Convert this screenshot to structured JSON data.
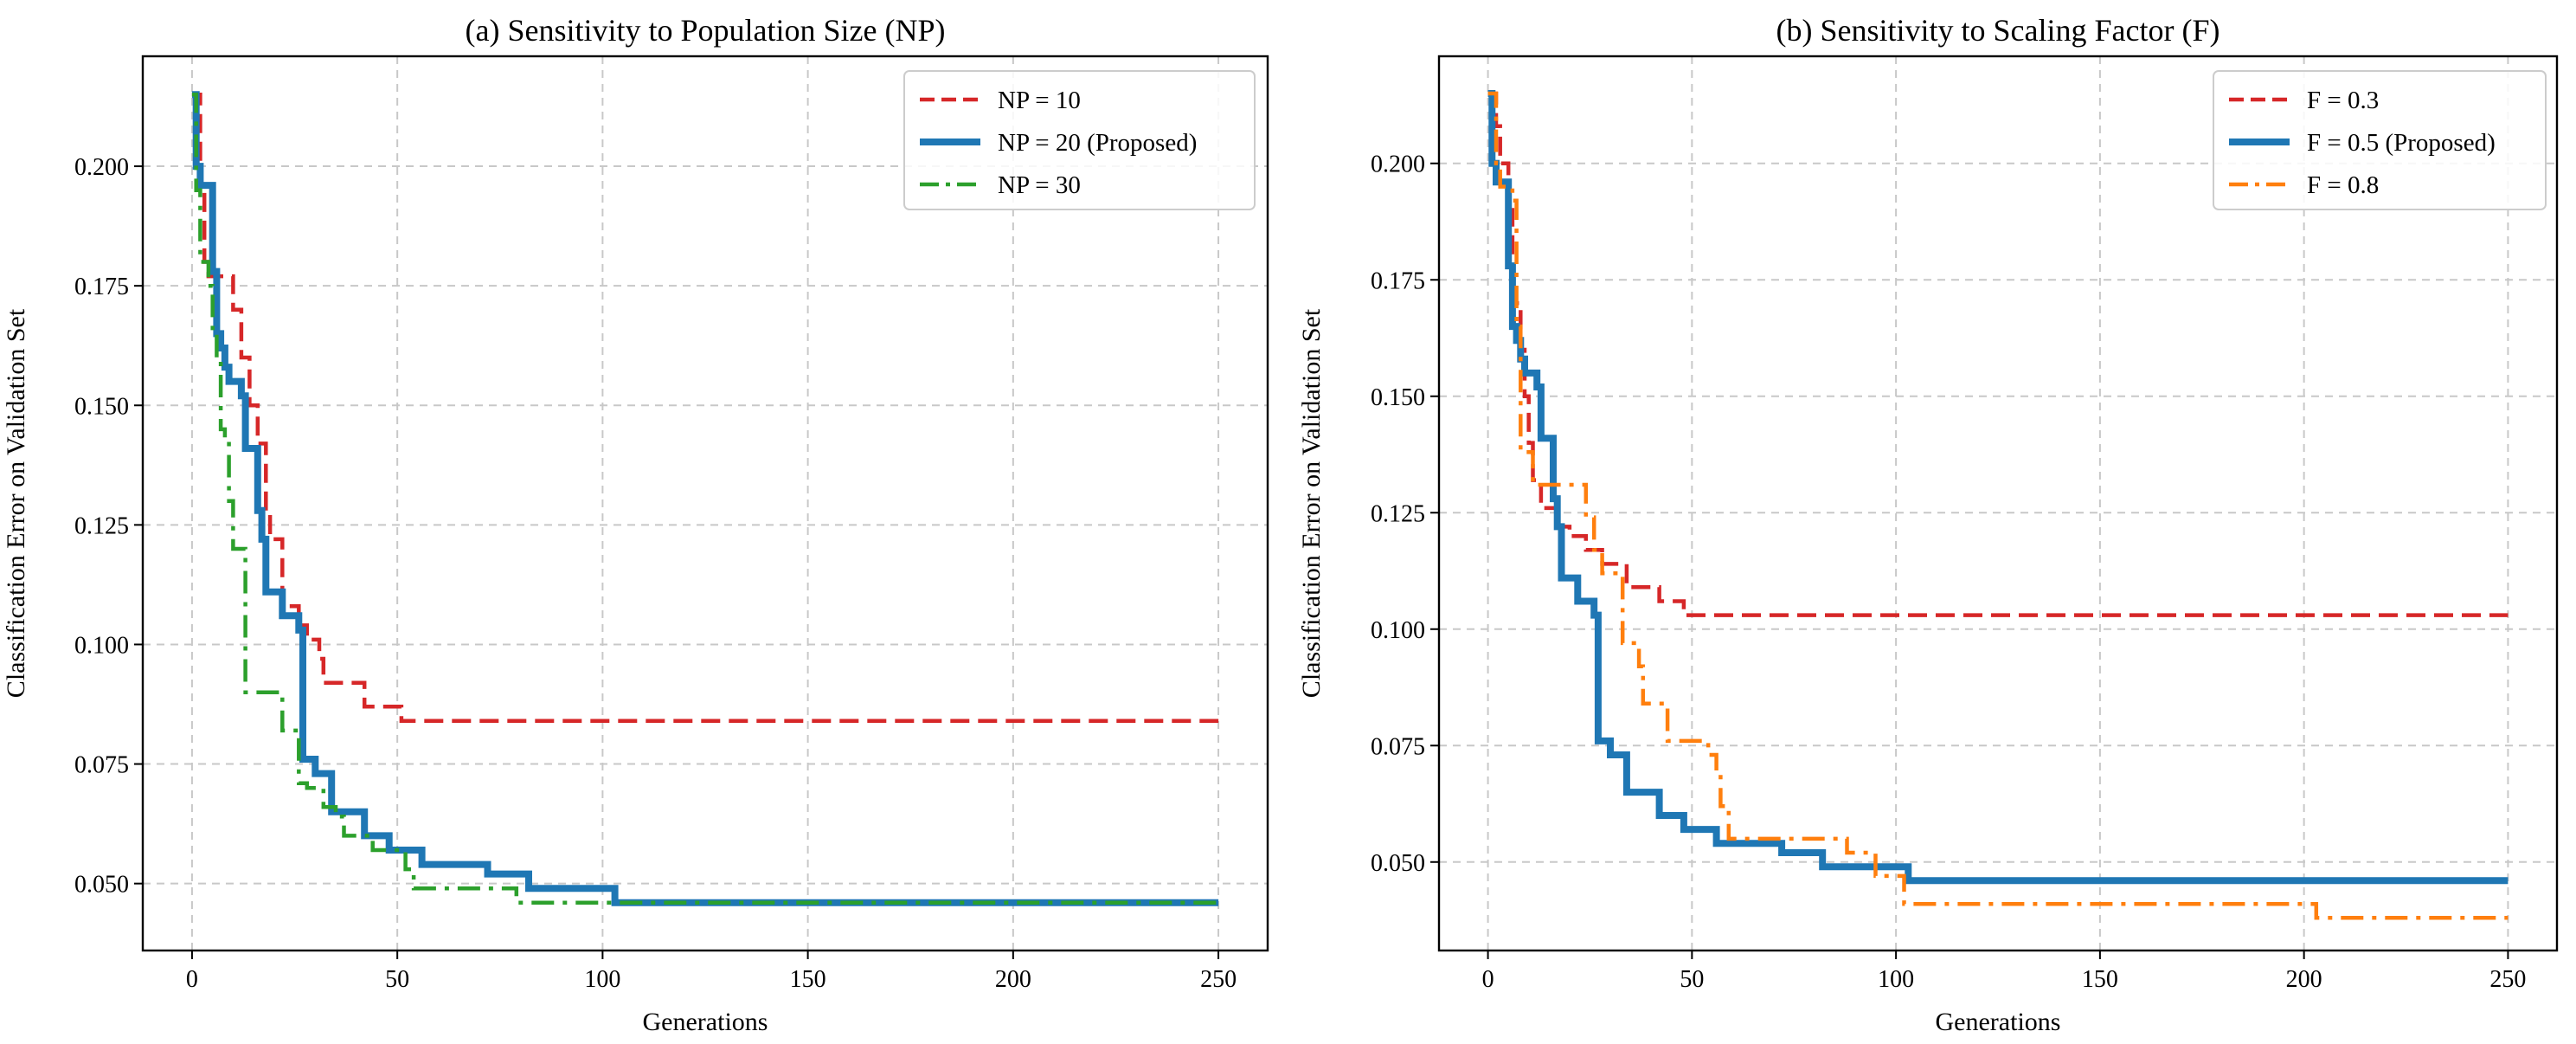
{
  "chart_data": [
    {
      "type": "line",
      "title": "(a) Sensitivity to Population Size (NP)",
      "xlabel": "Generations",
      "ylabel": "Classification Error on Validation Set",
      "xlim": [
        -12,
        262
      ],
      "ylim": [
        0.036,
        0.223
      ],
      "xticks": [
        0,
        50,
        100,
        150,
        200,
        250
      ],
      "xtick_labels": [
        "0",
        "50",
        "100",
        "150",
        "200",
        "250"
      ],
      "yticks": [
        0.05,
        0.075,
        0.1,
        0.125,
        0.15,
        0.175,
        0.2
      ],
      "ytick_labels": [
        "0.050",
        "0.075",
        "0.100",
        "0.125",
        "0.150",
        "0.175",
        "0.200"
      ],
      "grid": true,
      "legend_position": "top-right",
      "series": [
        {
          "name": "NP = 10",
          "color": "#d62728",
          "style": "dashed",
          "points": [
            [
              0,
              0.215
            ],
            [
              2,
              0.215
            ],
            [
              2,
              0.195
            ],
            [
              3,
              0.195
            ],
            [
              3,
              0.18
            ],
            [
              4,
              0.18
            ],
            [
              4,
              0.177
            ],
            [
              10,
              0.177
            ],
            [
              10,
              0.17
            ],
            [
              12,
              0.17
            ],
            [
              12,
              0.16
            ],
            [
              14,
              0.16
            ],
            [
              14,
              0.15
            ],
            [
              16,
              0.15
            ],
            [
              16,
              0.142
            ],
            [
              18,
              0.142
            ],
            [
              18,
              0.128
            ],
            [
              19,
              0.128
            ],
            [
              19,
              0.122
            ],
            [
              22,
              0.122
            ],
            [
              22,
              0.108
            ],
            [
              26,
              0.108
            ],
            [
              26,
              0.104
            ],
            [
              28,
              0.104
            ],
            [
              28,
              0.101
            ],
            [
              31,
              0.101
            ],
            [
              31,
              0.097
            ],
            [
              32,
              0.097
            ],
            [
              32,
              0.092
            ],
            [
              42,
              0.092
            ],
            [
              42,
              0.087
            ],
            [
              51,
              0.087
            ],
            [
              51,
              0.084
            ],
            [
              250,
              0.084
            ]
          ]
        },
        {
          "name": "NP = 20 (Proposed)",
          "color": "#1f77b4",
          "style": "solid",
          "points": [
            [
              0,
              0.215
            ],
            [
              1,
              0.215
            ],
            [
              1,
              0.2
            ],
            [
              2,
              0.2
            ],
            [
              2,
              0.196
            ],
            [
              5,
              0.196
            ],
            [
              5,
              0.178
            ],
            [
              6,
              0.178
            ],
            [
              6,
              0.165
            ],
            [
              7,
              0.165
            ],
            [
              7,
              0.162
            ],
            [
              8,
              0.162
            ],
            [
              8,
              0.158
            ],
            [
              9,
              0.158
            ],
            [
              9,
              0.155
            ],
            [
              12,
              0.155
            ],
            [
              12,
              0.152
            ],
            [
              13,
              0.152
            ],
            [
              13,
              0.141
            ],
            [
              16,
              0.141
            ],
            [
              16,
              0.128
            ],
            [
              17,
              0.128
            ],
            [
              17,
              0.122
            ],
            [
              18,
              0.122
            ],
            [
              18,
              0.111
            ],
            [
              22,
              0.111
            ],
            [
              22,
              0.106
            ],
            [
              26,
              0.106
            ],
            [
              26,
              0.103
            ],
            [
              27,
              0.103
            ],
            [
              27,
              0.076
            ],
            [
              30,
              0.076
            ],
            [
              30,
              0.073
            ],
            [
              34,
              0.073
            ],
            [
              34,
              0.065
            ],
            [
              42,
              0.065
            ],
            [
              42,
              0.06
            ],
            [
              48,
              0.06
            ],
            [
              48,
              0.057
            ],
            [
              56,
              0.057
            ],
            [
              56,
              0.054
            ],
            [
              72,
              0.054
            ],
            [
              72,
              0.052
            ],
            [
              82,
              0.052
            ],
            [
              82,
              0.049
            ],
            [
              103,
              0.049
            ],
            [
              103,
              0.046
            ],
            [
              250,
              0.046
            ]
          ]
        },
        {
          "name": "NP = 30",
          "color": "#2ca02c",
          "style": "dashdot",
          "points": [
            [
              0,
              0.215
            ],
            [
              1,
              0.215
            ],
            [
              1,
              0.195
            ],
            [
              2,
              0.195
            ],
            [
              2,
              0.18
            ],
            [
              4,
              0.18
            ],
            [
              4,
              0.175
            ],
            [
              5,
              0.175
            ],
            [
              5,
              0.165
            ],
            [
              6,
              0.165
            ],
            [
              6,
              0.16
            ],
            [
              7,
              0.16
            ],
            [
              7,
              0.145
            ],
            [
              8,
              0.145
            ],
            [
              8,
              0.143
            ],
            [
              9,
              0.143
            ],
            [
              9,
              0.13
            ],
            [
              10,
              0.13
            ],
            [
              10,
              0.12
            ],
            [
              13,
              0.12
            ],
            [
              13,
              0.09
            ],
            [
              22,
              0.09
            ],
            [
              22,
              0.082
            ],
            [
              26,
              0.082
            ],
            [
              26,
              0.071
            ],
            [
              28,
              0.071
            ],
            [
              28,
              0.07
            ],
            [
              32,
              0.07
            ],
            [
              32,
              0.066
            ],
            [
              35,
              0.066
            ],
            [
              35,
              0.064
            ],
            [
              37,
              0.064
            ],
            [
              37,
              0.06
            ],
            [
              44,
              0.06
            ],
            [
              44,
              0.057
            ],
            [
              52,
              0.057
            ],
            [
              52,
              0.053
            ],
            [
              54,
              0.053
            ],
            [
              54,
              0.049
            ],
            [
              79,
              0.049
            ],
            [
              79,
              0.046
            ],
            [
              250,
              0.046
            ]
          ]
        }
      ]
    },
    {
      "type": "line",
      "title": "(b) Sensitivity to Scaling Factor (F)",
      "xlabel": "Generations",
      "ylabel": "Classification Error on Validation Set",
      "xlim": [
        -12,
        262
      ],
      "ylim": [
        0.031,
        0.223
      ],
      "xticks": [
        0,
        50,
        100,
        150,
        200,
        250
      ],
      "xtick_labels": [
        "0",
        "50",
        "100",
        "150",
        "200",
        "250"
      ],
      "yticks": [
        0.05,
        0.075,
        0.1,
        0.125,
        0.15,
        0.175,
        0.2
      ],
      "ytick_labels": [
        "0.050",
        "0.075",
        "0.100",
        "0.125",
        "0.150",
        "0.175",
        "0.200"
      ],
      "grid": true,
      "legend_position": "top-right",
      "series": [
        {
          "name": "F = 0.3",
          "color": "#d62728",
          "style": "dashed",
          "points": [
            [
              0,
              0.215
            ],
            [
              2,
              0.215
            ],
            [
              2,
              0.208
            ],
            [
              3,
              0.208
            ],
            [
              3,
              0.2
            ],
            [
              5,
              0.2
            ],
            [
              5,
              0.19
            ],
            [
              6,
              0.19
            ],
            [
              6,
              0.17
            ],
            [
              8,
              0.17
            ],
            [
              8,
              0.16
            ],
            [
              9,
              0.16
            ],
            [
              9,
              0.15
            ],
            [
              10,
              0.15
            ],
            [
              10,
              0.14
            ],
            [
              11,
              0.14
            ],
            [
              11,
              0.132
            ],
            [
              13,
              0.132
            ],
            [
              13,
              0.126
            ],
            [
              17,
              0.126
            ],
            [
              17,
              0.122
            ],
            [
              20,
              0.122
            ],
            [
              20,
              0.12
            ],
            [
              24,
              0.12
            ],
            [
              24,
              0.117
            ],
            [
              28,
              0.117
            ],
            [
              28,
              0.114
            ],
            [
              34,
              0.114
            ],
            [
              34,
              0.109
            ],
            [
              42,
              0.109
            ],
            [
              42,
              0.106
            ],
            [
              48,
              0.106
            ],
            [
              48,
              0.103
            ],
            [
              250,
              0.103
            ]
          ]
        },
        {
          "name": "F = 0.5 (Proposed)",
          "color": "#1f77b4",
          "style": "solid",
          "points": [
            [
              0,
              0.215
            ],
            [
              1,
              0.215
            ],
            [
              1,
              0.2
            ],
            [
              2,
              0.2
            ],
            [
              2,
              0.196
            ],
            [
              5,
              0.196
            ],
            [
              5,
              0.178
            ],
            [
              6,
              0.178
            ],
            [
              6,
              0.165
            ],
            [
              7,
              0.165
            ],
            [
              7,
              0.162
            ],
            [
              8,
              0.162
            ],
            [
              8,
              0.158
            ],
            [
              9,
              0.158
            ],
            [
              9,
              0.155
            ],
            [
              12,
              0.155
            ],
            [
              12,
              0.152
            ],
            [
              13,
              0.152
            ],
            [
              13,
              0.141
            ],
            [
              16,
              0.141
            ],
            [
              16,
              0.128
            ],
            [
              17,
              0.128
            ],
            [
              17,
              0.122
            ],
            [
              18,
              0.122
            ],
            [
              18,
              0.111
            ],
            [
              22,
              0.111
            ],
            [
              22,
              0.106
            ],
            [
              26,
              0.106
            ],
            [
              26,
              0.103
            ],
            [
              27,
              0.103
            ],
            [
              27,
              0.076
            ],
            [
              30,
              0.076
            ],
            [
              30,
              0.073
            ],
            [
              34,
              0.073
            ],
            [
              34,
              0.065
            ],
            [
              42,
              0.065
            ],
            [
              42,
              0.06
            ],
            [
              48,
              0.06
            ],
            [
              48,
              0.057
            ],
            [
              56,
              0.057
            ],
            [
              56,
              0.054
            ],
            [
              72,
              0.054
            ],
            [
              72,
              0.052
            ],
            [
              82,
              0.052
            ],
            [
              82,
              0.049
            ],
            [
              103,
              0.049
            ],
            [
              103,
              0.046
            ],
            [
              250,
              0.046
            ]
          ]
        },
        {
          "name": "F = 0.8",
          "color": "#ff7f0e",
          "style": "dashdot",
          "points": [
            [
              0,
              0.215
            ],
            [
              2,
              0.215
            ],
            [
              2,
              0.2
            ],
            [
              3,
              0.2
            ],
            [
              3,
              0.195
            ],
            [
              6,
              0.195
            ],
            [
              6,
              0.192
            ],
            [
              7,
              0.192
            ],
            [
              7,
              0.165
            ],
            [
              8,
              0.165
            ],
            [
              8,
              0.138
            ],
            [
              11,
              0.138
            ],
            [
              11,
              0.131
            ],
            [
              24,
              0.131
            ],
            [
              24,
              0.124
            ],
            [
              26,
              0.124
            ],
            [
              26,
              0.117
            ],
            [
              28,
              0.117
            ],
            [
              28,
              0.112
            ],
            [
              33,
              0.112
            ],
            [
              33,
              0.097
            ],
            [
              37,
              0.097
            ],
            [
              37,
              0.092
            ],
            [
              38,
              0.092
            ],
            [
              38,
              0.084
            ],
            [
              44,
              0.084
            ],
            [
              44,
              0.076
            ],
            [
              54,
              0.076
            ],
            [
              54,
              0.073
            ],
            [
              56,
              0.073
            ],
            [
              56,
              0.069
            ],
            [
              57,
              0.069
            ],
            [
              57,
              0.062
            ],
            [
              59,
              0.062
            ],
            [
              59,
              0.055
            ],
            [
              88,
              0.055
            ],
            [
              88,
              0.052
            ],
            [
              95,
              0.052
            ],
            [
              95,
              0.047
            ],
            [
              102,
              0.047
            ],
            [
              102,
              0.041
            ],
            [
              203,
              0.041
            ],
            [
              203,
              0.038
            ],
            [
              250,
              0.038
            ]
          ]
        }
      ]
    }
  ]
}
